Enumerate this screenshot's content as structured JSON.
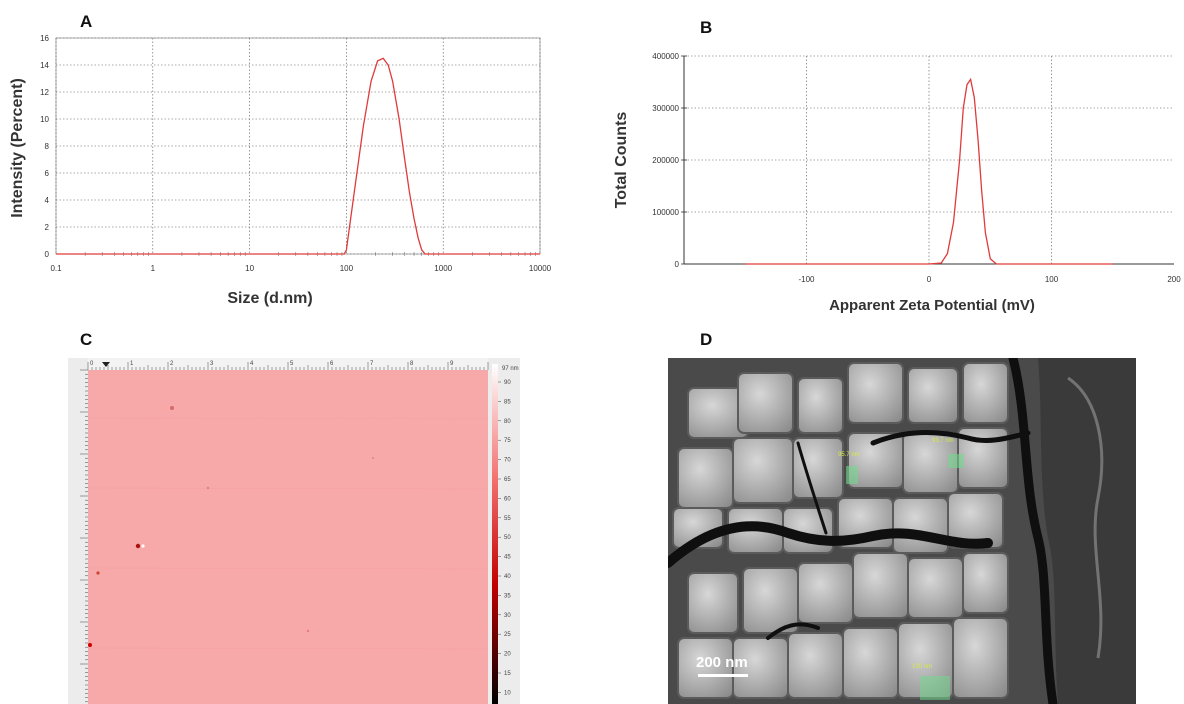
{
  "panels": {
    "a_label": "A",
    "b_label": "B",
    "c_label": "C",
    "d_label": "D"
  },
  "chart_data": [
    {
      "panel": "A",
      "type": "line",
      "xlabel": "Size (d.nm)",
      "ylabel": "Intensity (Percent)",
      "xscale": "log",
      "xlim": [
        0.1,
        10000
      ],
      "ylim": [
        0,
        16
      ],
      "xticks": [
        0.1,
        1,
        10,
        100,
        1000,
        10000
      ],
      "xtick_labels": [
        "0.1",
        "1",
        "10",
        "100",
        "1000",
        "10000"
      ],
      "yticks": [
        0,
        2,
        4,
        6,
        8,
        10,
        12,
        14,
        16
      ],
      "grid": true,
      "color": "#e03a3a",
      "series": [
        {
          "x": [
            0.1,
            50,
            95,
            100,
            120,
            150,
            180,
            210,
            240,
            270,
            300,
            350,
            400,
            450,
            500,
            550,
            600,
            650,
            10000
          ],
          "y": [
            0,
            0,
            0,
            0.3,
            4.5,
            9.5,
            12.8,
            14.3,
            14.5,
            14.0,
            12.8,
            10.0,
            7.0,
            4.5,
            2.6,
            1.2,
            0.3,
            0,
            0
          ]
        }
      ]
    },
    {
      "panel": "B",
      "type": "line",
      "xlabel": "Apparent Zeta Potential (mV)",
      "ylabel": "Total Counts",
      "xlim": [
        -200,
        200
      ],
      "ylim": [
        0,
        400000
      ],
      "xticks": [
        -100,
        0,
        100,
        200
      ],
      "xtick_labels": [
        "-100",
        "0",
        "100",
        "200"
      ],
      "yticks": [
        0,
        100000,
        200000,
        300000,
        400000
      ],
      "ytick_labels": [
        "0",
        "100000",
        "200000",
        "300000",
        "400000"
      ],
      "grid": true,
      "color": "#e03a3a",
      "series": [
        {
          "x": [
            -150,
            0,
            10,
            15,
            20,
            25,
            28,
            31,
            34,
            37,
            40,
            43,
            46,
            50,
            55,
            150
          ],
          "y": [
            0,
            0,
            2000,
            20000,
            80000,
            200000,
            300000,
            345000,
            355000,
            320000,
            240000,
            140000,
            60000,
            10000,
            0,
            0
          ]
        }
      ]
    }
  ],
  "afm": {
    "colorbar_top_label": "97 nm",
    "colorbar_ticks": [
      "90",
      "85",
      "80",
      "75",
      "70",
      "65",
      "60",
      "55",
      "50",
      "45",
      "40",
      "35",
      "30",
      "25",
      "20",
      "15",
      "10"
    ],
    "top_ruler_labels": [
      "0",
      "1",
      "2",
      "3",
      "4",
      "5",
      "6",
      "7",
      "8",
      "9"
    ],
    "surface_color": "#f7a8a8",
    "grid_color": "#e6e6e6"
  },
  "sem": {
    "scalebar_label": "200 nm",
    "measurements": [
      "95.7 nm",
      "93.7 nm",
      "130 nm"
    ],
    "marker_color": "#6fdc8c"
  }
}
